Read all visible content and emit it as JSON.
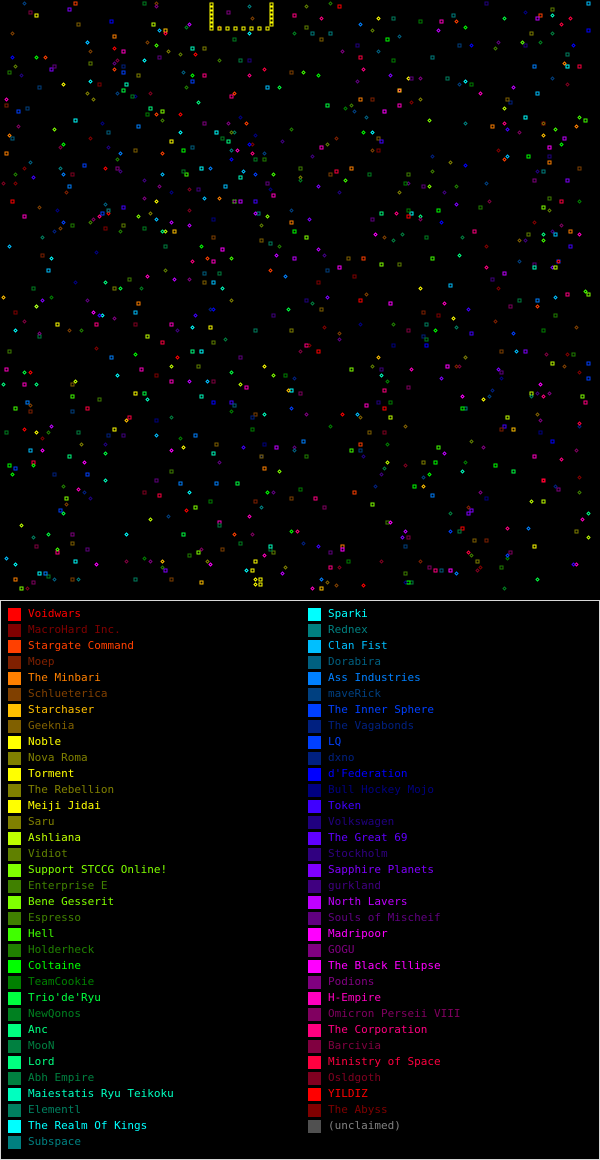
{
  "map": {
    "faction_colors": [
      "#ff0000",
      "#800000",
      "#ff4000",
      "#802000",
      "#ff8000",
      "#804000",
      "#ffbf00",
      "#806000",
      "#ffff00",
      "#808000",
      "#bfff00",
      "#608000",
      "#80ff00",
      "#408000",
      "#40ff00",
      "#208000",
      "#00ff00",
      "#008000",
      "#00ff40",
      "#008020",
      "#00ff80",
      "#008040",
      "#00ffbf",
      "#008060",
      "#00ffff",
      "#008080",
      "#00bfff",
      "#006080",
      "#0080ff",
      "#004080",
      "#0040ff",
      "#002080",
      "#0000ff",
      "#000080",
      "#4000ff",
      "#200080",
      "#8000ff",
      "#400080",
      "#bf00ff",
      "#600080",
      "#ff00ff",
      "#800080",
      "#ff00bf",
      "#800060",
      "#ff0080",
      "#800040",
      "#ff0040",
      "#800020"
    ]
  },
  "legend": {
    "left": [
      {
        "label": "Voidwars",
        "color": "#ff0000"
      },
      {
        "label": "MacroHard Inc.",
        "color": "#800000"
      },
      {
        "label": "Stargate Command",
        "color": "#ff4000"
      },
      {
        "label": "Moep",
        "color": "#802000"
      },
      {
        "label": "The Minbari",
        "color": "#ff8000"
      },
      {
        "label": "Schlueterica",
        "color": "#804000"
      },
      {
        "label": "Starchaser",
        "color": "#ffbf00"
      },
      {
        "label": "Geeknia",
        "color": "#806000"
      },
      {
        "label": "Noble",
        "color": "#ffff00"
      },
      {
        "label": "Nova Roma",
        "color": "#808000"
      },
      {
        "label": "Torment",
        "color": "#ffff00"
      },
      {
        "label": "The Rebellion",
        "color": "#808000"
      },
      {
        "label": "Meiji Jidai",
        "color": "#ffff00"
      },
      {
        "label": "Saru",
        "color": "#808000"
      },
      {
        "label": "Ashliana",
        "color": "#bfff00"
      },
      {
        "label": "Vidiot",
        "color": "#608000"
      },
      {
        "label": "Support STCCG Online!",
        "color": "#80ff00"
      },
      {
        "label": "Enterprise E",
        "color": "#408000"
      },
      {
        "label": "Bene Gesserit",
        "color": "#80ff00"
      },
      {
        "label": "Espresso",
        "color": "#408000"
      },
      {
        "label": "Hell",
        "color": "#40ff00"
      },
      {
        "label": "Holderheck",
        "color": "#208000"
      },
      {
        "label": "Coltaine",
        "color": "#00ff00"
      },
      {
        "label": "TeamCookie",
        "color": "#008000"
      },
      {
        "label": "Trio'de'Ryu",
        "color": "#00ff40"
      },
      {
        "label": "NewQonos",
        "color": "#008020"
      },
      {
        "label": "Anc",
        "color": "#00ff80"
      },
      {
        "label": "MooN",
        "color": "#008040"
      },
      {
        "label": "Lord",
        "color": "#00ff80"
      },
      {
        "label": "Abh Empire",
        "color": "#008040"
      },
      {
        "label": "Maiestatis Ryu Teikoku",
        "color": "#00ffbf"
      },
      {
        "label": "Elementl",
        "color": "#008060"
      },
      {
        "label": "The Realm Of Kings",
        "color": "#00ffff"
      },
      {
        "label": "Subspace",
        "color": "#008080"
      }
    ],
    "right": [
      {
        "label": "Sparki",
        "color": "#00ffff"
      },
      {
        "label": "Rednex",
        "color": "#008080"
      },
      {
        "label": "Clan Fist",
        "color": "#00bfff"
      },
      {
        "label": "Dorabira",
        "color": "#006080"
      },
      {
        "label": "Ass Industries",
        "color": "#0080ff"
      },
      {
        "label": "maveRick",
        "color": "#004080"
      },
      {
        "label": "The Inner Sphere",
        "color": "#0040ff"
      },
      {
        "label": "The Vagabonds",
        "color": "#002080"
      },
      {
        "label": "LQ",
        "color": "#0040ff"
      },
      {
        "label": "dxno",
        "color": "#002080"
      },
      {
        "label": "d'Federation",
        "color": "#0000ff"
      },
      {
        "label": "Bull Hockey Mojo",
        "color": "#000080"
      },
      {
        "label": "Token",
        "color": "#4000ff"
      },
      {
        "label": "Volkswagen",
        "color": "#200080"
      },
      {
        "label": "The Great 69",
        "color": "#6000ff"
      },
      {
        "label": "Stockholm",
        "color": "#300080"
      },
      {
        "label": "Sapphire Planets",
        "color": "#8000ff"
      },
      {
        "label": "gurkland",
        "color": "#400080"
      },
      {
        "label": "North Lavers",
        "color": "#bf00ff"
      },
      {
        "label": "Souls of Mischeif",
        "color": "#600080"
      },
      {
        "label": "Madripoor",
        "color": "#ff00ff"
      },
      {
        "label": "GOGU",
        "color": "#800080"
      },
      {
        "label": "The Black Ellipse",
        "color": "#ff00ff"
      },
      {
        "label": "Podions",
        "color": "#800080"
      },
      {
        "label": "H-Empire",
        "color": "#ff00bf"
      },
      {
        "label": "Omicron Perseii VIII",
        "color": "#800060"
      },
      {
        "label": "The Corporation",
        "color": "#ff0080"
      },
      {
        "label": "Barcivia",
        "color": "#800040"
      },
      {
        "label": "Ministry of Space",
        "color": "#ff0040"
      },
      {
        "label": "Osldgoth",
        "color": "#800020"
      },
      {
        "label": "YILDIZ",
        "color": "#ff0000"
      },
      {
        "label": "The Abyss",
        "color": "#800000"
      },
      {
        "label": "(unclaimed)",
        "color": "#808080",
        "swatch": "#505050"
      }
    ]
  }
}
